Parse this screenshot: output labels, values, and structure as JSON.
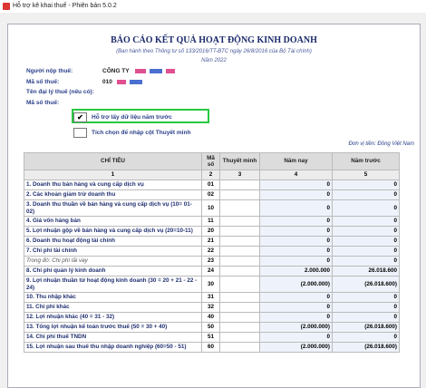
{
  "window": {
    "title": "Hỗ trợ kê khai thuế - Phiên bản 5.0.2"
  },
  "form": {
    "title": "BÁO CÁO KẾT QUẢ HOẠT ĐỘNG KINH DOANH",
    "subtitle": "(Ban hành theo Thông tư số 133/2016/TT-BTC ngày 26/8/2016 của Bộ Tài chính)",
    "year": "Năm 2022",
    "fields": [
      {
        "label": "Người nộp thuế:",
        "value": "CÔNG TY"
      },
      {
        "label": "Mã số thuế:",
        "value": "010"
      },
      {
        "label": "Tên đại lý thuế (nếu có):"
      },
      {
        "label": "Mã số thuế:"
      }
    ],
    "options": [
      {
        "label": "Hỗ trợ lấy dữ liệu năm trước",
        "checked": true
      },
      {
        "label": "Tích chọn để nhập cột Thuyết minh",
        "checked": false
      }
    ],
    "currency": "Đơn vị tiền: Đồng Việt Nam"
  },
  "table": {
    "header": [
      "CHỈ TIÊU",
      "Mã số",
      "Thuyết minh",
      "Năm nay",
      "Năm trước"
    ],
    "column_numbers": [
      "1",
      "2",
      "3",
      "4",
      "5"
    ],
    "rows": [
      [
        "1. Doanh thu bán hàng và cung cấp dịch vụ",
        "01",
        null,
        "0",
        "0"
      ],
      [
        "2. Các khoản giảm trừ doanh thu",
        "02",
        null,
        "0",
        "0"
      ],
      [
        "3. Doanh thu thuần về bán hàng và cung cấp dịch vụ (10= 01-02)",
        "10",
        null,
        "0",
        "0"
      ],
      [
        "4. Giá vốn hàng bán",
        "11",
        null,
        "0",
        "0"
      ],
      [
        "5. Lợi nhuận gộp về bán hàng và cung cấp dịch vụ (20=10-11)",
        "20",
        null,
        "0",
        "0"
      ],
      [
        "6. Doanh thu hoạt động tài chính",
        "21",
        null,
        "0",
        "0"
      ],
      [
        "7. Chi phí tài chính",
        "22",
        null,
        "0",
        "0"
      ],
      [
        "Trong đó: Chi phí lãi vay",
        "23",
        null,
        "0",
        "0"
      ],
      [
        "8. Chi phí quản lý kinh doanh",
        "24",
        null,
        "2.000.000",
        "26.018.600"
      ],
      [
        "9. Lợi nhuận thuần từ hoạt động kinh doanh (30 = 20 + 21 - 22 - 24)",
        "30",
        null,
        "(2.000.000)",
        "(26.018.600)"
      ],
      [
        "10. Thu nhập khác",
        "31",
        null,
        "0",
        "0"
      ],
      [
        "11. Chi phí khác",
        "32",
        null,
        "0",
        "0"
      ],
      [
        "12. Lợi nhuận khác (40 = 31 - 32)",
        "40",
        null,
        "0",
        "0"
      ],
      [
        "13. Tổng lợi nhuận kế toán trước thuế (50 = 30 + 40)",
        "50",
        null,
        "(2.000.000)",
        "(26.018.600)"
      ],
      [
        "14. Chi phí thuế TNDN",
        "51",
        null,
        "0",
        "0"
      ],
      [
        "15. Lợi nhuận sau thuế thu nhập doanh nghiệp (60=50 - 51)",
        "60",
        null,
        "(2.000.000)",
        "(26.018.600)"
      ]
    ]
  }
}
